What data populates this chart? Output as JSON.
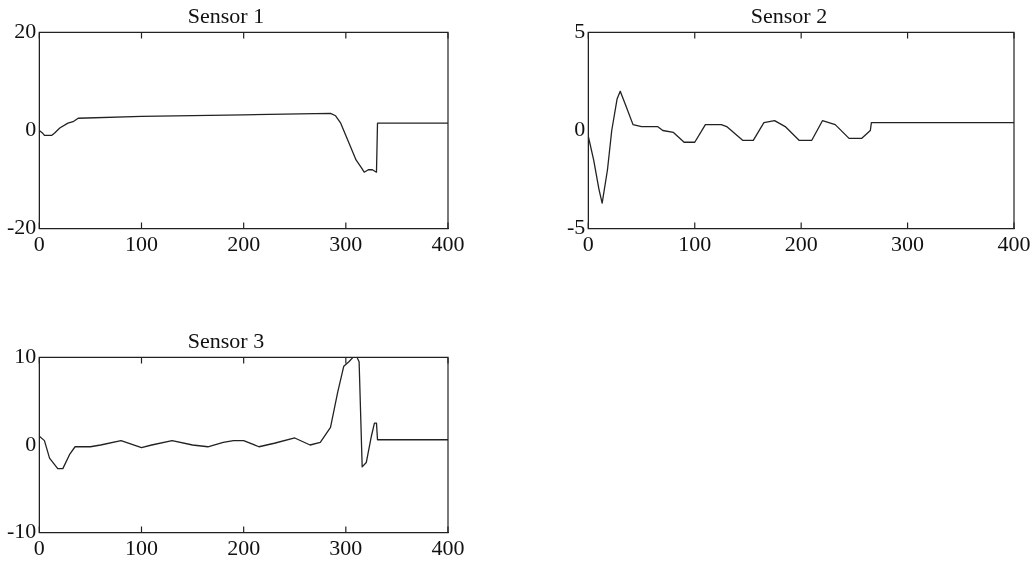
{
  "chart_data": [
    {
      "type": "line",
      "title": "Sensor 1",
      "xlim": [
        0,
        400
      ],
      "xticks": [
        0,
        100,
        200,
        300,
        400
      ],
      "ylim": [
        -20,
        20
      ],
      "yticks": [
        -20,
        0,
        20
      ],
      "grid": false,
      "legend": false,
      "marker": "none",
      "line_style": "solid",
      "series": [
        {
          "color": "#222222",
          "x": [
            0,
            3,
            5,
            12,
            15,
            20,
            28,
            33,
            38,
            100,
            200,
            285,
            290,
            295,
            300,
            305,
            310,
            315,
            318,
            322,
            326,
            330,
            331,
            400
          ],
          "values": [
            0,
            -0.5,
            -1,
            -1,
            -0.5,
            0.5,
            1.5,
            1.8,
            2.5,
            2.9,
            3.2,
            3.5,
            3,
            1.5,
            -1,
            -3.5,
            -6,
            -7.5,
            -8.5,
            -8,
            -8,
            -8.5,
            1.5,
            1.5
          ]
        }
      ]
    },
    {
      "type": "line",
      "title": "Sensor 2",
      "xlim": [
        0,
        400
      ],
      "xticks": [
        0,
        100,
        200,
        300,
        400
      ],
      "ylim": [
        -5,
        5
      ],
      "yticks": [
        -5,
        0,
        5
      ],
      "grid": false,
      "legend": false,
      "marker": "none",
      "line_style": "solid",
      "series": [
        {
          "color": "#222222",
          "x": [
            0,
            5,
            10,
            13,
            18,
            22,
            27,
            30,
            35,
            42,
            50,
            65,
            70,
            80,
            90,
            100,
            110,
            125,
            130,
            145,
            155,
            165,
            175,
            185,
            198,
            210,
            220,
            232,
            245,
            257,
            265,
            266,
            400
          ],
          "values": [
            -0.3,
            -1.5,
            -3,
            -3.7,
            -2,
            0,
            1.6,
            2,
            1.3,
            0.3,
            0.2,
            0.2,
            0,
            -0.1,
            -0.6,
            -0.6,
            0.3,
            0.3,
            0.2,
            -0.5,
            -0.5,
            0.4,
            0.5,
            0.2,
            -0.5,
            -0.5,
            0.5,
            0.3,
            -0.4,
            -0.4,
            0,
            0.4,
            0.4
          ]
        }
      ]
    },
    {
      "type": "line",
      "title": "Sensor 3",
      "xlim": [
        0,
        400
      ],
      "xticks": [
        0,
        100,
        200,
        300,
        400
      ],
      "ylim": [
        -10,
        10
      ],
      "yticks": [
        -10,
        0,
        10
      ],
      "grid": false,
      "legend": false,
      "marker": "none",
      "line_style": "solid",
      "series": [
        {
          "color": "#222222",
          "x": [
            0,
            5,
            10,
            18,
            23,
            30,
            35,
            50,
            60,
            80,
            100,
            110,
            130,
            150,
            165,
            180,
            190,
            200,
            215,
            230,
            250,
            265,
            275,
            285,
            292,
            298,
            303,
            307,
            311,
            313,
            316,
            320,
            325,
            328,
            330,
            331,
            400
          ],
          "values": [
            1,
            0.5,
            -1.5,
            -2.7,
            -2.7,
            -1,
            -0.2,
            -0.2,
            0,
            0.5,
            -0.3,
            0,
            0.5,
            0,
            -0.2,
            0.3,
            0.5,
            0.5,
            -0.2,
            0.2,
            0.8,
            0,
            0.3,
            2,
            6,
            9,
            9.5,
            10,
            10,
            9.5,
            -2.5,
            -2,
            1,
            2.5,
            2.5,
            0.6,
            0.6
          ]
        }
      ]
    }
  ]
}
